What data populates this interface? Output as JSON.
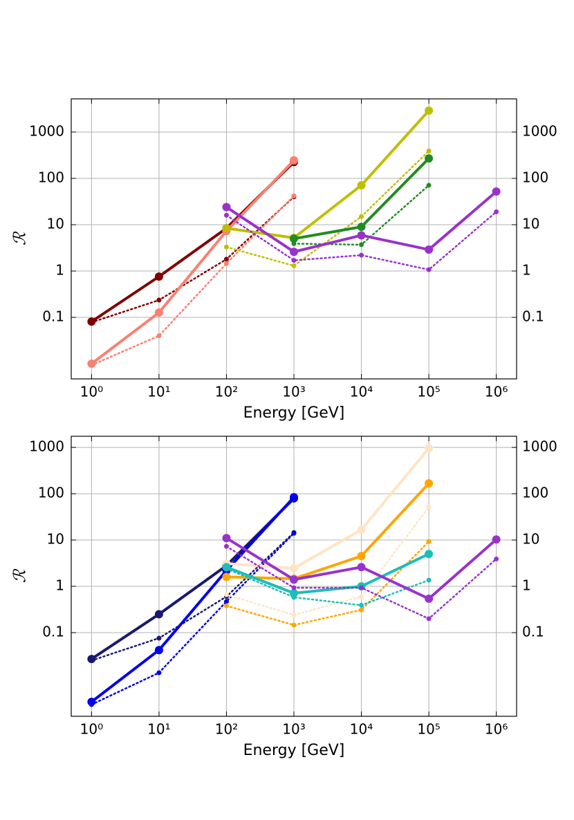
{
  "chart_data": [
    {
      "type": "line",
      "xlabel": "Energy [GeV]",
      "ylabel": "ℛ",
      "log_x": true,
      "log_y": true,
      "grid": true,
      "x": [
        1,
        10,
        100,
        1000,
        10000,
        100000,
        1000000
      ],
      "xlim": [
        0.5,
        2000000
      ],
      "ylim": [
        0.0047,
        5200
      ],
      "xticks": [
        {
          "value": 1,
          "label": "10⁰"
        },
        {
          "value": 10,
          "label": "10¹"
        },
        {
          "value": 100,
          "label": "10²"
        },
        {
          "value": 1000,
          "label": "10³"
        },
        {
          "value": 10000,
          "label": "10⁴"
        },
        {
          "value": 100000,
          "label": "10⁵"
        },
        {
          "value": 1000000,
          "label": "10⁶"
        }
      ],
      "yticks": [
        0.1,
        1,
        10,
        100,
        1000
      ],
      "series": [
        {
          "color": "#800000",
          "style": "solid",
          "values": [
            0.081,
            0.76,
            8.4,
            225,
            null,
            null,
            null
          ]
        },
        {
          "color": "#800000",
          "style": "dotted",
          "values": [
            0.078,
            0.236,
            1.8,
            40,
            null,
            null,
            null
          ]
        },
        {
          "color": "#fa8072",
          "style": "solid",
          "values": [
            0.01,
            0.127,
            7.3,
            245,
            null,
            null,
            null
          ]
        },
        {
          "color": "#fa8072",
          "style": "dotted",
          "values": [
            0.0093,
            0.04,
            1.46,
            42,
            null,
            null,
            null
          ]
        },
        {
          "color": "#bfbf00",
          "style": "solid",
          "values": [
            null,
            null,
            8.4,
            5.2,
            71,
            2900,
            null
          ]
        },
        {
          "color": "#bfbf00",
          "style": "dotted",
          "values": [
            null,
            null,
            3.3,
            1.3,
            15,
            390,
            null
          ]
        },
        {
          "color": "#228b22",
          "style": "solid",
          "values": [
            null,
            null,
            null,
            5.0,
            9.0,
            270,
            null
          ]
        },
        {
          "color": "#228b22",
          "style": "dotted",
          "values": [
            null,
            null,
            null,
            3.9,
            3.7,
            71,
            null
          ]
        },
        {
          "color": "#9932cc",
          "style": "solid",
          "values": [
            null,
            null,
            24,
            2.6,
            5.9,
            2.9,
            52
          ]
        },
        {
          "color": "#9932cc",
          "style": "dotted",
          "values": [
            null,
            null,
            16,
            1.7,
            2.2,
            1.07,
            19
          ]
        }
      ]
    },
    {
      "type": "line",
      "xlabel": "Energy [GeV]",
      "ylabel": "ℛ",
      "log_x": true,
      "log_y": true,
      "grid": true,
      "x": [
        1,
        10,
        100,
        1000,
        10000,
        100000,
        1000000
      ],
      "xlim": [
        0.5,
        2000000
      ],
      "ylim": [
        0.00156,
        1740
      ],
      "xticks": [
        {
          "value": 1,
          "label": "10⁰"
        },
        {
          "value": 10,
          "label": "10¹"
        },
        {
          "value": 100,
          "label": "10²"
        },
        {
          "value": 1000,
          "label": "10³"
        },
        {
          "value": 10000,
          "label": "10⁴"
        },
        {
          "value": 100000,
          "label": "10⁵"
        },
        {
          "value": 1000000,
          "label": "10⁶"
        }
      ],
      "yticks": [
        0.1,
        1,
        10,
        100,
        1000
      ],
      "series": [
        {
          "color": "#191970",
          "style": "solid",
          "values": [
            0.027,
            0.25,
            2.8,
            79,
            null,
            null,
            null
          ]
        },
        {
          "color": "#191970",
          "style": "dotted",
          "values": [
            0.025,
            0.076,
            0.6,
            14.5,
            null,
            null,
            null
          ]
        },
        {
          "color": "#0000ee",
          "style": "solid",
          "values": [
            0.0032,
            0.042,
            2.2,
            84,
            null,
            null,
            null
          ]
        },
        {
          "color": "#0000ee",
          "style": "dotted",
          "values": [
            0.0028,
            0.0136,
            0.47,
            14,
            null,
            null,
            null
          ]
        },
        {
          "color": "#ffe4c4",
          "style": "solid",
          "values": [
            null,
            null,
            3.1,
            2.45,
            16.7,
            960,
            null
          ]
        },
        {
          "color": "#ffe4c4",
          "style": "dotted",
          "values": [
            null,
            null,
            0.66,
            0.24,
            0.6,
            52,
            null
          ]
        },
        {
          "color": "#ffa500",
          "style": "solid",
          "values": [
            null,
            null,
            1.6,
            1.46,
            4.5,
            167,
            null
          ]
        },
        {
          "color": "#ffa500",
          "style": "dotted",
          "values": [
            null,
            null,
            0.38,
            0.146,
            0.31,
            9.3,
            null
          ]
        },
        {
          "color": "#1abfb8",
          "style": "solid",
          "values": [
            null,
            null,
            2.6,
            0.71,
            1.0,
            5.0,
            null
          ]
        },
        {
          "color": "#1abfb8",
          "style": "dotted",
          "values": [
            null,
            null,
            2.4,
            0.58,
            0.39,
            1.36,
            null
          ]
        },
        {
          "color": "#9932cc",
          "style": "solid",
          "values": [
            null,
            null,
            11,
            1.4,
            2.6,
            0.54,
            10.3
          ]
        },
        {
          "color": "#9932cc",
          "style": "dotted",
          "values": [
            null,
            null,
            7.3,
            0.93,
            0.93,
            0.2,
            3.9
          ]
        }
      ]
    }
  ]
}
